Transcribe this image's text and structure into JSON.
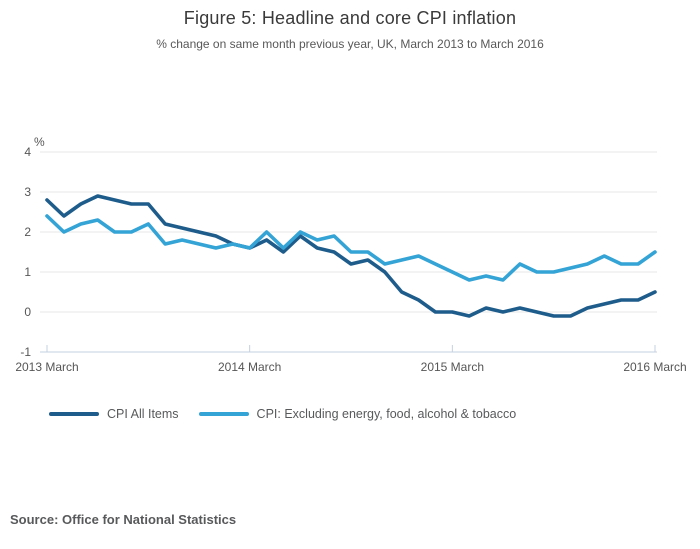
{
  "header": {
    "title": "Figure 5: Headline and core CPI inflation",
    "subtitle": "% change on same month previous year, UK, March 2013 to March 2016"
  },
  "chart_data": {
    "type": "line",
    "title": "Figure 5: Headline and core CPI inflation",
    "subtitle": "% change on same month previous year, UK, March 2013 to March 2016",
    "unit_label": "%",
    "x_start": "2013 March",
    "x_end": "2016 March",
    "x_interval": "monthly",
    "ylim": [
      -1,
      4
    ],
    "yticks": [
      4,
      3,
      2,
      1,
      0,
      -1
    ],
    "grid_values": [
      4,
      3,
      2,
      1,
      0
    ],
    "xticks": [
      {
        "index": 0,
        "label": "2013 March"
      },
      {
        "index": 12,
        "label": "2014 March"
      },
      {
        "index": 24,
        "label": "2015 March"
      },
      {
        "index": 36,
        "label": "2016 March"
      }
    ],
    "legend_position": "bottom",
    "grid_color": "#e7e7e7",
    "axis_color": "#c4d1e0",
    "series": [
      {
        "name": "CPI All Items",
        "color": "#1e5c8b",
        "values": [
          2.8,
          2.4,
          2.7,
          2.9,
          2.8,
          2.7,
          2.7,
          2.2,
          2.1,
          2.0,
          1.9,
          1.7,
          1.6,
          1.8,
          1.5,
          1.9,
          1.6,
          1.5,
          1.2,
          1.3,
          1.0,
          0.5,
          0.3,
          0.0,
          0.0,
          -0.1,
          0.1,
          0.0,
          0.1,
          0.0,
          -0.1,
          -0.1,
          0.1,
          0.2,
          0.3,
          0.3,
          0.5
        ]
      },
      {
        "name": "CPI: Excluding energy, food, alcohol & tobacco",
        "color": "#34a3d5",
        "values": [
          2.4,
          2.0,
          2.2,
          2.3,
          2.0,
          2.0,
          2.2,
          1.7,
          1.8,
          1.7,
          1.6,
          1.7,
          1.6,
          2.0,
          1.6,
          2.0,
          1.8,
          1.9,
          1.5,
          1.5,
          1.2,
          1.3,
          1.4,
          1.2,
          1.0,
          0.8,
          0.9,
          0.8,
          1.2,
          1.0,
          1.0,
          1.1,
          1.2,
          1.4,
          1.2,
          1.2,
          1.5
        ]
      }
    ]
  },
  "footer": {
    "source": "Source: Office for National Statistics"
  }
}
